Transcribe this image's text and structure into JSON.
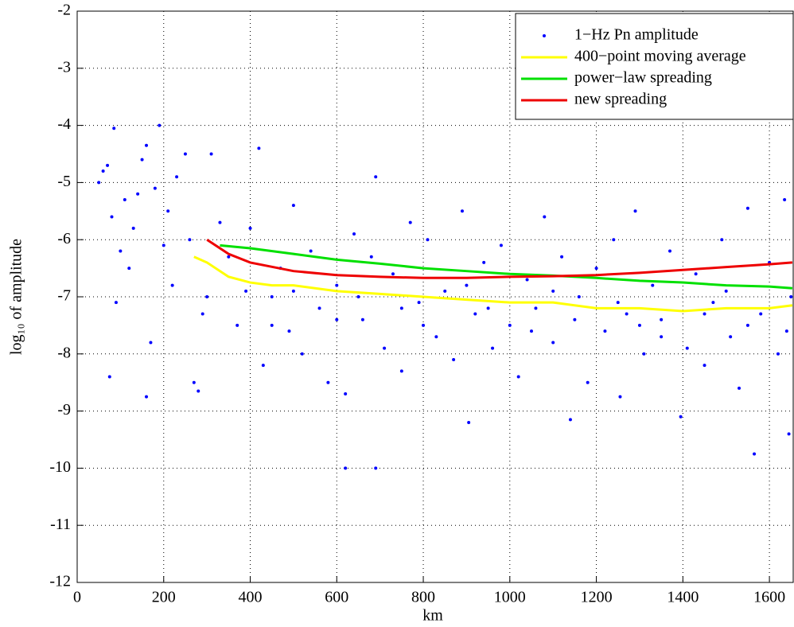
{
  "chart_data": {
    "type": "scatter",
    "xlabel": "km",
    "ylabel": "log₁₀ of amplitude",
    "xlim": [
      0,
      1655
    ],
    "ylim": [
      -12,
      -2
    ],
    "xticks": [
      0,
      200,
      400,
      600,
      800,
      1000,
      1200,
      1400,
      1600
    ],
    "yticks": [
      -12,
      -11,
      -10,
      -9,
      -8,
      -7,
      -6,
      -5,
      -4,
      -3,
      -2
    ],
    "grid": true,
    "legend": "top-right",
    "series": [
      {
        "name": "1−Hz Pn amplitude",
        "type": "scatter",
        "color": "#0000ff",
        "x": [
          50,
          60,
          70,
          80,
          85,
          90,
          75,
          100,
          110,
          120,
          130,
          140,
          150,
          160,
          160,
          170,
          180,
          190,
          200,
          210,
          220,
          230,
          250,
          260,
          270,
          280,
          290,
          310,
          330,
          350,
          370,
          390,
          400,
          420,
          430,
          450,
          470,
          490,
          500,
          520,
          540,
          560,
          580,
          600,
          620,
          620,
          640,
          660,
          680,
          690,
          690,
          710,
          730,
          750,
          770,
          790,
          810,
          830,
          850,
          870,
          890,
          905,
          920,
          940,
          960,
          980,
          1000,
          1020,
          1040,
          1060,
          1080,
          1100,
          1120,
          1140,
          1160,
          1180,
          1200,
          1220,
          1240,
          1255,
          1270,
          1290,
          1310,
          1330,
          1350,
          1370,
          1395,
          1410,
          1430,
          1450,
          1470,
          1490,
          1510,
          1530,
          1550,
          1565,
          1580,
          1600,
          1620,
          1635,
          1645,
          1650,
          300,
          450,
          600,
          750,
          900,
          1050,
          1150,
          1250,
          1350,
          1450,
          1550,
          1640,
          500,
          650,
          800,
          950,
          1100,
          1300,
          1500
        ],
        "values": [
          -5.0,
          -4.8,
          -4.7,
          -5.6,
          -4.05,
          -7.1,
          -8.4,
          -6.2,
          -5.3,
          -6.5,
          -5.8,
          -5.2,
          -4.6,
          -4.35,
          -8.75,
          -7.8,
          -5.1,
          -4.0,
          -6.1,
          -5.5,
          -6.8,
          -4.9,
          -4.5,
          -6.0,
          -8.5,
          -8.65,
          -7.3,
          -4.5,
          -5.7,
          -6.3,
          -7.5,
          -6.9,
          -5.8,
          -4.4,
          -8.2,
          -7.0,
          -6.5,
          -7.6,
          -5.4,
          -8.0,
          -6.2,
          -7.2,
          -8.5,
          -6.8,
          -10.0,
          -8.7,
          -5.9,
          -7.4,
          -6.3,
          -10.0,
          -4.9,
          -7.9,
          -6.6,
          -8.3,
          -5.7,
          -7.1,
          -6.0,
          -7.7,
          -6.9,
          -8.1,
          -5.5,
          -9.2,
          -7.3,
          -6.4,
          -7.9,
          -6.1,
          -7.5,
          -8.4,
          -6.7,
          -7.2,
          -5.6,
          -7.8,
          -6.3,
          -9.15,
          -7.0,
          -8.5,
          -6.5,
          -7.6,
          -6.0,
          -8.75,
          -7.3,
          -5.5,
          -8.0,
          -6.8,
          -7.4,
          -6.2,
          -9.1,
          -7.9,
          -6.6,
          -8.2,
          -7.1,
          -6.0,
          -7.7,
          -8.6,
          -5.45,
          -9.75,
          -7.3,
          -6.4,
          -8.0,
          -5.3,
          -9.4,
          -7.0,
          -7.0,
          -7.5,
          -7.4,
          -7.2,
          -6.8,
          -7.6,
          -7.4,
          -7.1,
          -7.7,
          -7.3,
          -7.5,
          -7.6,
          -6.9,
          -7.0,
          -7.5,
          -7.2,
          -6.9,
          -7.5,
          -6.9
        ]
      },
      {
        "name": "400−point moving average",
        "type": "line",
        "color": "#ffff00",
        "x": [
          270,
          300,
          350,
          400,
          450,
          500,
          600,
          700,
          800,
          900,
          1000,
          1100,
          1200,
          1300,
          1400,
          1500,
          1600,
          1653
        ],
        "values": [
          -6.3,
          -6.4,
          -6.65,
          -6.75,
          -6.8,
          -6.8,
          -6.9,
          -6.95,
          -7.0,
          -7.05,
          -7.1,
          -7.1,
          -7.2,
          -7.2,
          -7.25,
          -7.2,
          -7.2,
          -7.15
        ]
      },
      {
        "name": "power−law spreading",
        "type": "line",
        "color": "#00e000",
        "x": [
          330,
          400,
          500,
          600,
          700,
          800,
          900,
          1000,
          1100,
          1200,
          1300,
          1400,
          1500,
          1600,
          1653
        ],
        "values": [
          -6.1,
          -6.15,
          -6.25,
          -6.35,
          -6.42,
          -6.5,
          -6.55,
          -6.6,
          -6.63,
          -6.67,
          -6.72,
          -6.75,
          -6.8,
          -6.82,
          -6.85
        ]
      },
      {
        "name": "new spreading",
        "type": "line",
        "color": "#ee0000",
        "x": [
          300,
          350,
          400,
          500,
          600,
          700,
          800,
          900,
          1000,
          1100,
          1200,
          1300,
          1400,
          1500,
          1600,
          1653
        ],
        "values": [
          -6.0,
          -6.25,
          -6.4,
          -6.55,
          -6.62,
          -6.65,
          -6.67,
          -6.67,
          -6.65,
          -6.64,
          -6.62,
          -6.58,
          -6.53,
          -6.48,
          -6.43,
          -6.4
        ]
      }
    ]
  }
}
